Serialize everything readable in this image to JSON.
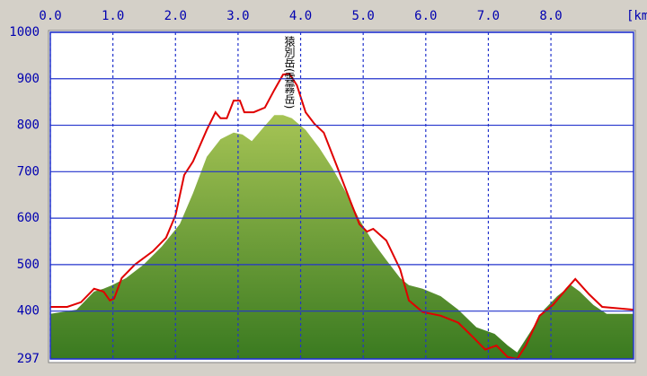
{
  "chart_data": {
    "type": "line",
    "annotation": "猿別岳(雲霧岳)",
    "x_unit": "[km",
    "xlim": [
      0,
      9.32
    ],
    "ylim": [
      297,
      1000
    ],
    "xticks": [
      {
        "value": 0,
        "label": "0.0"
      },
      {
        "value": 1,
        "label": "1.0"
      },
      {
        "value": 2,
        "label": "2.0"
      },
      {
        "value": 3,
        "label": "3.0"
      },
      {
        "value": 4,
        "label": "4.0"
      },
      {
        "value": 5,
        "label": "5.0"
      },
      {
        "value": 6,
        "label": "6.0"
      },
      {
        "value": 7,
        "label": "7.0"
      },
      {
        "value": 8,
        "label": "8.0"
      }
    ],
    "yticks": [
      297,
      400,
      500,
      600,
      700,
      800,
      900,
      1000
    ],
    "grid": true,
    "series": [
      {
        "kind": "area",
        "color": "#6f9a32",
        "x": [
          0,
          0.42,
          0.7,
          0.85,
          0.99,
          1.21,
          1.49,
          1.78,
          2.07,
          2.28,
          2.5,
          2.72,
          2.93,
          3.07,
          3.22,
          3.43,
          3.58,
          3.72,
          3.86,
          4.08,
          4.3,
          4.51,
          4.73,
          4.94,
          5.16,
          5.37,
          5.59,
          5.73,
          5.95,
          6.24,
          6.52,
          6.81,
          7.1,
          7.31,
          7.46,
          7.67,
          7.89,
          8.1,
          8.32,
          8.46,
          8.68,
          8.89,
          9.32
        ],
        "values": [
          394,
          403,
          442,
          448,
          456,
          471,
          500,
          539,
          587,
          654,
          732,
          770,
          784,
          780,
          766,
          799,
          822,
          822,
          815,
          790,
          751,
          707,
          654,
          597,
          548,
          510,
          471,
          456,
          448,
          432,
          403,
          365,
          351,
          326,
          311,
          355,
          403,
          432,
          456,
          442,
          413,
          394,
          394
        ]
      },
      {
        "kind": "line",
        "color": "#e00000",
        "x": [
          0,
          0.27,
          0.49,
          0.7,
          0.85,
          0.95,
          1.02,
          1.14,
          1.35,
          1.64,
          1.85,
          2.0,
          2.14,
          2.28,
          2.5,
          2.64,
          2.72,
          2.82,
          2.93,
          3.03,
          3.1,
          3.25,
          3.43,
          3.58,
          3.72,
          3.82,
          3.94,
          4.08,
          4.22,
          4.37,
          4.58,
          4.8,
          4.94,
          5.06,
          5.16,
          5.37,
          5.59,
          5.73,
          5.95,
          6.24,
          6.52,
          6.74,
          6.95,
          7.13,
          7.31,
          7.46,
          7.6,
          7.82,
          8.03,
          8.25,
          8.39,
          8.61,
          8.82,
          9.32
        ],
        "values": [
          409,
          409,
          419,
          448,
          442,
          423,
          427,
          471,
          500,
          529,
          558,
          606,
          693,
          722,
          790,
          828,
          815,
          815,
          853,
          853,
          828,
          828,
          838,
          876,
          909,
          911,
          886,
          828,
          803,
          784,
          712,
          635,
          587,
          571,
          577,
          552,
          490,
          423,
          398,
          390,
          375,
          346,
          317,
          326,
          301,
          297,
          326,
          390,
          413,
          448,
          469,
          436,
          409,
          403
        ]
      }
    ]
  }
}
